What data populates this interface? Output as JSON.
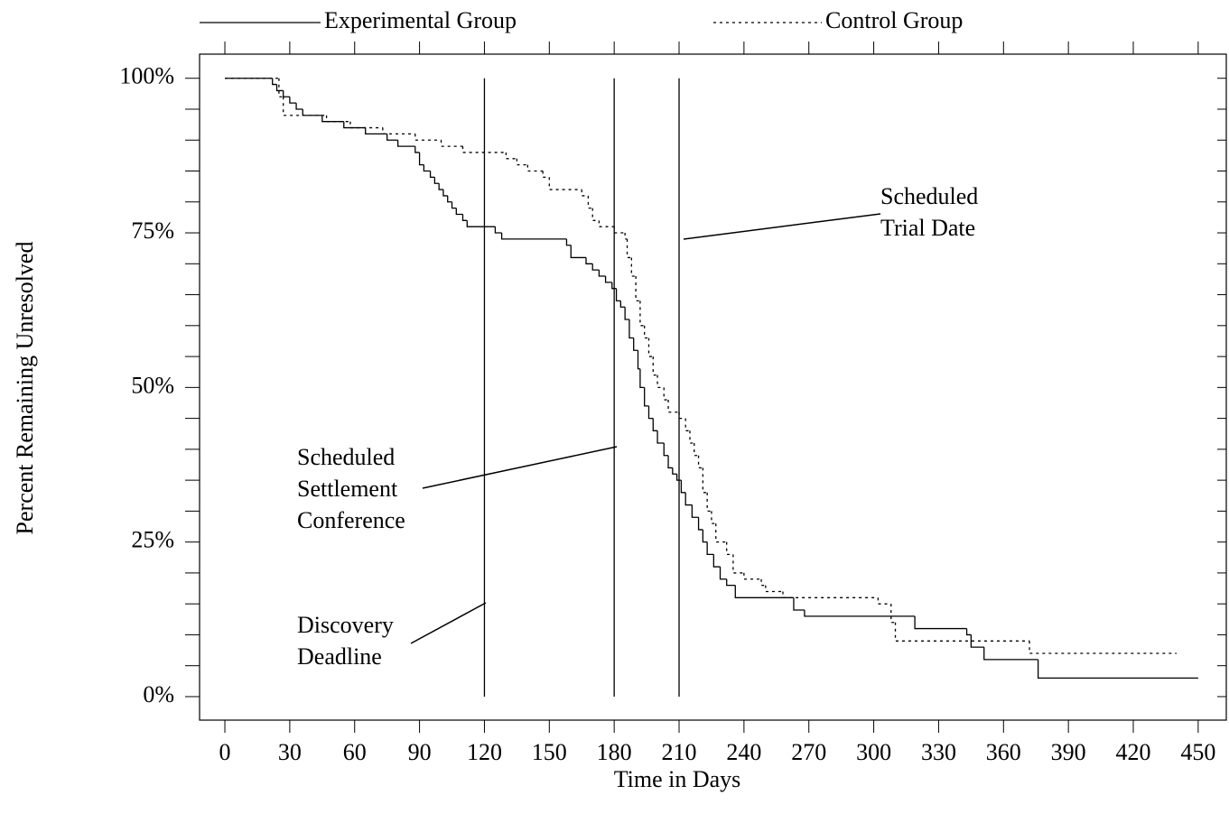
{
  "chart_data": {
    "type": "step",
    "x_label": "Time in Days",
    "y_label": "Percent Remaining Unresolved",
    "legend": "top",
    "xlim": [
      -11.7,
      463
    ],
    "ylim": [
      -3.8,
      103.9
    ],
    "xticks": [
      0,
      30,
      60,
      90,
      120,
      150,
      180,
      210,
      240,
      270,
      300,
      330,
      360,
      390,
      420,
      450
    ],
    "yticks": [
      {
        "value": 0,
        "label": "0%"
      },
      {
        "value": 25,
        "label": "25%"
      },
      {
        "value": 50,
        "label": "50%"
      },
      {
        "value": 75,
        "label": "75%"
      },
      {
        "value": 100,
        "label": "100%"
      }
    ],
    "yminorticks": [
      5,
      10,
      15,
      20,
      30,
      35,
      40,
      45,
      55,
      60,
      65,
      70,
      80,
      85,
      90,
      95
    ],
    "reference_lines": [
      120,
      180,
      210
    ],
    "annotations": [
      {
        "lines": [
          "Scheduled",
          "Trial Date"
        ]
      },
      {
        "lines": [
          "Scheduled",
          "Settlement",
          "Conference"
        ]
      },
      {
        "lines": [
          "Discovery",
          "Deadline"
        ]
      }
    ],
    "series": [
      {
        "name": "Experimental Group",
        "color": "#000000",
        "style": "solid",
        "x": [
          0,
          22,
          24,
          27,
          30,
          33,
          36,
          45,
          55,
          65,
          75,
          80,
          88,
          90,
          92,
          95,
          97,
          99,
          101,
          103,
          105,
          107,
          110,
          112,
          125,
          128,
          158,
          160,
          167,
          170,
          173,
          176,
          179,
          181,
          183,
          185,
          187,
          189,
          191,
          192,
          194,
          196,
          198,
          200,
          203,
          205,
          207,
          209,
          211,
          213,
          216,
          219,
          221,
          223,
          226,
          229,
          232,
          236,
          263,
          268,
          319,
          343,
          345,
          351,
          376,
          450
        ],
        "values": [
          100,
          99,
          98,
          97,
          96,
          95,
          94,
          93,
          92,
          91,
          90,
          89,
          88,
          86,
          85,
          84,
          83,
          82,
          81,
          80,
          79,
          78,
          77,
          76,
          75,
          74,
          73,
          71,
          70,
          69,
          68,
          67,
          66,
          64,
          63,
          61,
          58,
          56,
          53,
          50,
          47,
          45,
          43,
          41,
          39,
          37,
          36,
          35,
          33,
          31,
          29,
          27,
          25,
          23,
          21,
          19,
          18,
          16,
          14,
          13,
          11,
          10,
          8,
          6,
          3,
          3
        ]
      },
      {
        "name": "Control Group",
        "color": "#000000",
        "style": "dotted",
        "x": [
          0,
          25,
          27,
          47,
          58,
          73,
          88,
          100,
          110,
          130,
          135,
          140,
          147,
          150,
          165,
          168,
          170,
          173,
          180,
          185,
          186,
          188,
          190,
          192,
          194,
          196,
          198,
          200,
          203,
          205,
          210,
          213,
          215,
          217,
          219,
          221,
          223,
          225,
          227,
          232,
          235,
          240,
          248,
          250,
          258,
          302,
          308,
          310,
          372,
          440
        ],
        "values": [
          100,
          97,
          94,
          93,
          92,
          91,
          90,
          89,
          88,
          87,
          86,
          85,
          84,
          82,
          81,
          79,
          77,
          76,
          75,
          74,
          71,
          68,
          64,
          60,
          58,
          55,
          52,
          50,
          48,
          46,
          45,
          43,
          41,
          39,
          37,
          33,
          30,
          28,
          25,
          23,
          20,
          19,
          18,
          17,
          16,
          15,
          12,
          9,
          7,
          7
        ]
      }
    ]
  }
}
